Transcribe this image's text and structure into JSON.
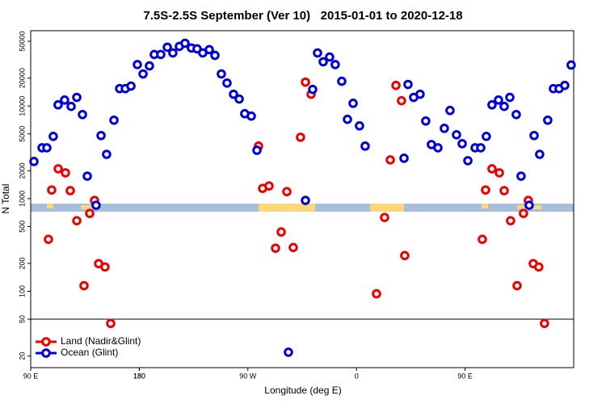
{
  "chart_data": {
    "type": "scatter",
    "title": "7.5S-2.5S September (Ver 10)   2015-01-01 to 2020-12-18",
    "x_label": "Longitude (deg E)",
    "y_label": "N Total",
    "xlim": [
      90,
      540
    ],
    "xticks": [
      {
        "value": 90,
        "label": "90 E"
      },
      180,
      {
        "value": 270,
        "label": "90 W"
      },
      {
        "value": 360,
        "label": "0"
      },
      {
        "value": 450,
        "label": "90 E"
      },
      180.0001
    ],
    "ylim": [
      15,
      65000
    ],
    "log_y": true,
    "yticks": [
      20,
      50,
      100,
      200,
      500,
      1000,
      2000,
      5000,
      10000,
      20000,
      50000
    ],
    "reference_line": 50,
    "legend": "bottom-left",
    "series": [
      {
        "name": "Land (Nadir&Glint)",
        "color": "#ee0000",
        "x": [
          104.7,
          107.4,
          112.8,
          118.8,
          122.8,
          128.2,
          134.2,
          138.9,
          142.9,
          146.3,
          151.6,
          156.3,
          278.8,
          282.2,
          287.5,
          292.9,
          297.6,
          302.3,
          307.6,
          313.6,
          317.7,
          322.4,
          376.6,
          383.3,
          388.0,
          392.7,
          397.3,
          400.0,
          464.3,
          467.0,
          472.3,
          478.4,
          482.4,
          487.7,
          493.1,
          498.4,
          502.4,
          506.5,
          511.1,
          515.8
        ],
        "values": [
          364,
          1240,
          2100,
          1900,
          1220,
          578,
          115,
          693,
          957,
          199,
          183,
          45,
          3690,
          1290,
          1370,
          292,
          437,
          1190,
          297,
          4600,
          18100,
          13400,
          94,
          627,
          2620,
          16700,
          11400,
          243,
          364,
          1240,
          2100,
          1900,
          1220,
          578,
          115,
          693,
          957,
          199,
          183,
          45
        ]
      },
      {
        "name": "Ocean (Glint)",
        "color": "#0000dd",
        "x": [
          92.7,
          99.4,
          103.4,
          108.7,
          112.7,
          118.1,
          123.5,
          128.2,
          132.9,
          136.9,
          144.2,
          148.3,
          152.9,
          159.0,
          163.7,
          168.4,
          173.1,
          178.4,
          183.1,
          188.4,
          192.4,
          197.8,
          203.2,
          207.8,
          213.2,
          217.9,
          223.2,
          227.9,
          232.6,
          238.0,
          242.7,
          248.0,
          252.7,
          258.1,
          262.8,
          267.4,
          272.8,
          277.5,
          303.6,
          317.7,
          323.7,
          327.7,
          332.4,
          337.7,
          342.4,
          347.8,
          352.5,
          357.2,
          362.5,
          367.2,
          399.4,
          402.7,
          407.4,
          412.7,
          417.4,
          422.1,
          427.5,
          432.8,
          437.5,
          442.9,
          447.6,
          452.3,
          458.3,
          463.0,
          467.6,
          472.3,
          477.7,
          482.4,
          487.1,
          492.4,
          496.4,
          503.1,
          507.2,
          511.8,
          518.5,
          523.2,
          527.9,
          532.6,
          537.9
        ],
        "values": [
          2520,
          3540,
          3540,
          4700,
          10300,
          11600,
          9900,
          12400,
          8090,
          1750,
          848,
          4800,
          3010,
          7030,
          15400,
          15400,
          16400,
          28000,
          22200,
          27100,
          36000,
          36000,
          43100,
          37400,
          44000,
          47600,
          42300,
          41400,
          37400,
          40600,
          35200,
          22200,
          17700,
          13400,
          11900,
          8260,
          7780,
          3330,
          22,
          957,
          15100,
          37400,
          30000,
          33800,
          28000,
          18500,
          7180,
          10700,
          6110,
          3690,
          2730,
          17100,
          12400,
          13400,
          6890,
          3840,
          3540,
          5740,
          8950,
          4890,
          3920,
          2570,
          3540,
          3540,
          4700,
          10300,
          11600,
          9900,
          12400,
          8090,
          1750,
          848,
          4800,
          3010,
          7030,
          15400,
          15400,
          16700,
          27700
        ]
      }
    ]
  }
}
